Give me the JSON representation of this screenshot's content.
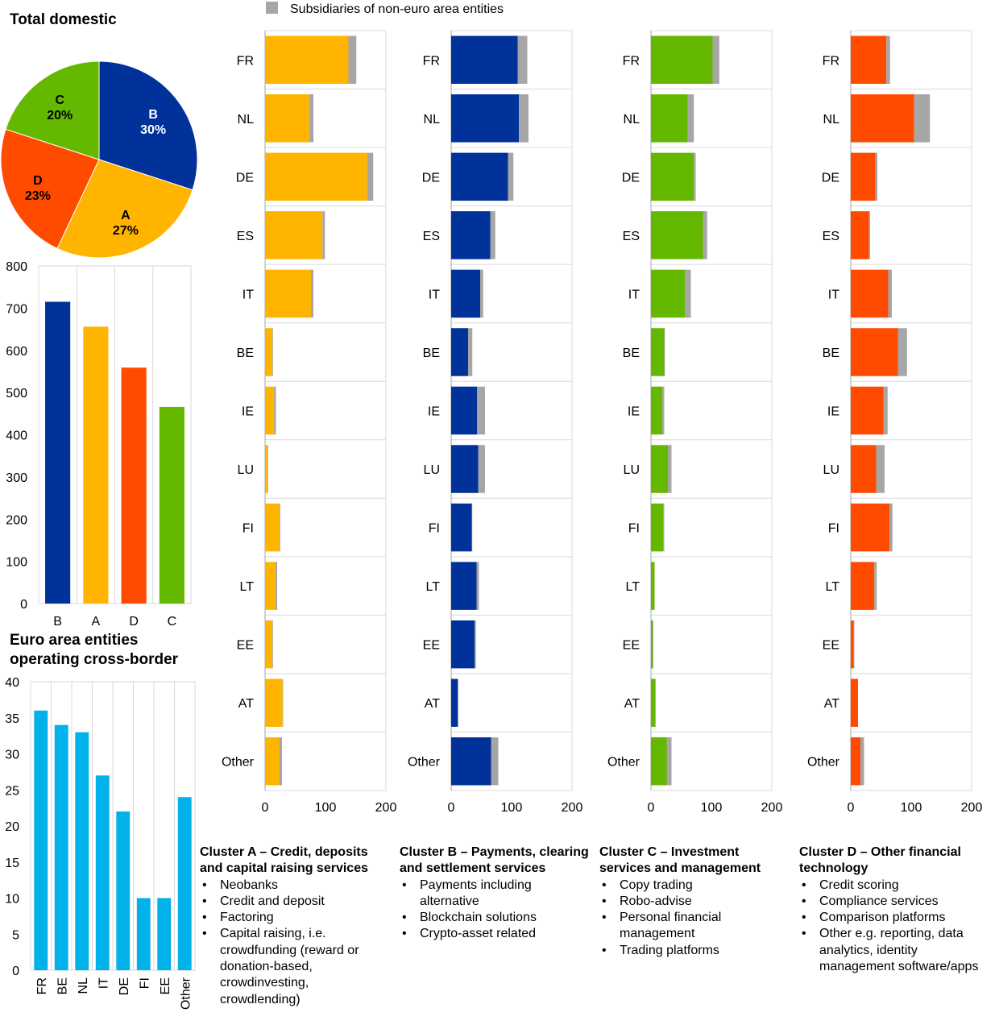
{
  "legend": {
    "label": "Subsidiaries of non-euro area entities",
    "color": "#a6a6a6"
  },
  "colors": {
    "A": "#ffb400",
    "B": "#003299",
    "C": "#65b800",
    "D": "#ff4b00",
    "crossborder": "#00b1ea",
    "subsidiary": "#a6a6a6"
  },
  "chart_data": [
    {
      "id": "pie",
      "type": "pie",
      "title": "Total domestic",
      "slices": [
        {
          "label": "B",
          "percent_label": "30%",
          "value": 30,
          "color": "#003299"
        },
        {
          "label": "A",
          "percent_label": "27%",
          "value": 27,
          "color": "#ffb400"
        },
        {
          "label": "D",
          "percent_label": "23%",
          "value": 23,
          "color": "#ff4b00"
        },
        {
          "label": "C",
          "percent_label": "20%",
          "value": 20,
          "color": "#65b800"
        }
      ]
    },
    {
      "id": "domestic_bars",
      "type": "bar",
      "categories": [
        "B",
        "A",
        "D",
        "C"
      ],
      "values": [
        715,
        656,
        559,
        466
      ],
      "colors": [
        "#003299",
        "#ffb400",
        "#ff4b00",
        "#65b800"
      ],
      "ylim": [
        0,
        800
      ],
      "yticks": [
        0,
        100,
        200,
        300,
        400,
        500,
        600,
        700,
        800
      ]
    },
    {
      "id": "crossborder",
      "type": "bar",
      "title": "Euro area entities operating cross-border",
      "title_lines": [
        "Euro area entities",
        "operating cross-border"
      ],
      "categories": [
        "FR",
        "BE",
        "NL",
        "IT",
        "DE",
        "FI",
        "EE",
        "Other"
      ],
      "values": [
        36,
        34,
        33,
        27,
        22,
        10,
        10,
        24
      ],
      "ylim": [
        0,
        40
      ],
      "yticks": [
        0,
        5,
        10,
        15,
        20,
        25,
        30,
        35,
        40
      ]
    },
    {
      "id": "clusters",
      "type": "bar",
      "orientation": "horizontal",
      "stacked": true,
      "countries": [
        "FR",
        "NL",
        "DE",
        "ES",
        "IT",
        "BE",
        "IE",
        "LU",
        "FI",
        "LT",
        "EE",
        "AT",
        "Other"
      ],
      "xlim": [
        0,
        200
      ],
      "xticks": [
        0,
        100,
        200
      ],
      "panels": [
        {
          "cluster": "A",
          "color": "#ffb400",
          "domestic": [
            138,
            73,
            169,
            95,
            76,
            12,
            15,
            4,
            24,
            17,
            12,
            29,
            24
          ],
          "subsidiary": [
            13,
            7,
            10,
            4,
            4,
            1,
            3,
            1,
            1,
            3,
            1,
            1,
            4
          ]
        },
        {
          "cluster": "B",
          "color": "#003299",
          "domestic": [
            110,
            112,
            94,
            65,
            48,
            28,
            43,
            45,
            34,
            42,
            39,
            11,
            66
          ],
          "subsidiary": [
            16,
            16,
            9,
            8,
            5,
            7,
            13,
            11,
            1,
            4,
            2,
            1,
            12
          ]
        },
        {
          "cluster": "C",
          "color": "#65b800",
          "domestic": [
            102,
            61,
            71,
            86,
            56,
            22,
            19,
            28,
            20,
            6,
            3,
            7,
            26
          ],
          "subsidiary": [
            11,
            10,
            3,
            7,
            10,
            1,
            3,
            6,
            2,
            0,
            1,
            1,
            8
          ]
        },
        {
          "cluster": "D",
          "color": "#ff4b00",
          "domestic": [
            59,
            105,
            41,
            30,
            62,
            78,
            54,
            42,
            64,
            39,
            5,
            12,
            16
          ],
          "subsidiary": [
            6,
            26,
            3,
            2,
            6,
            15,
            7,
            14,
            5,
            4,
            1,
            0,
            6
          ]
        }
      ]
    }
  ],
  "clusters_text": [
    {
      "title": "Cluster A – Credit, deposits and capital raising services",
      "items": [
        "Neobanks",
        "Credit and deposit",
        "Factoring",
        "Capital raising, i.e. crowdfunding (reward or donation-based, crowdinvesting, crowdlending)"
      ]
    },
    {
      "title": "Cluster B – Payments, clearing and settlement services",
      "items": [
        "Payments including alternative",
        "Blockchain solutions",
        "Crypto-asset related"
      ]
    },
    {
      "title": "Cluster C – Investment services and management",
      "items": [
        "Copy trading",
        "Robo-advise",
        "Personal financial management",
        "Trading platforms"
      ]
    },
    {
      "title": "Cluster D – Other financial technology",
      "items": [
        "Credit scoring",
        "Compliance services",
        "Comparison platforms",
        "Other e.g. reporting, data analytics, identity management software/apps"
      ]
    }
  ]
}
